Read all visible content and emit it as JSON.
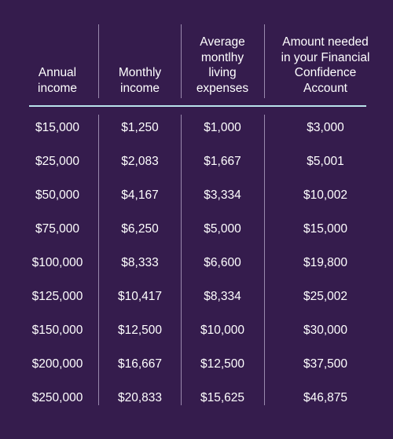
{
  "table": {
    "headers": [
      "Annual\nincome",
      "Monthly\nincome",
      "Average\nmontlhy\nliving\nexpenses",
      "Amount needed\nin your Financial\nConfidence\nAccount"
    ],
    "rows": [
      [
        "$15,000",
        "$1,250",
        "$1,000",
        "$3,000"
      ],
      [
        "$25,000",
        "$2,083",
        "$1,667",
        "$5,001"
      ],
      [
        "$50,000",
        "$4,167",
        "$3,334",
        "$10,002"
      ],
      [
        "$75,000",
        "$6,250",
        "$5,000",
        "$15,000"
      ],
      [
        "$100,000",
        "$8,333",
        "$6,600",
        "$19,800"
      ],
      [
        "$125,000",
        "$10,417",
        "$8,334",
        "$25,002"
      ],
      [
        "$150,000",
        "$12,500",
        "$10,000",
        "$30,000"
      ],
      [
        "$200,000",
        "$16,667",
        "$12,500",
        "$37,500"
      ],
      [
        "$250,000",
        "$20,833",
        "$15,625",
        "$46,875"
      ]
    ]
  },
  "colors": {
    "background": "#351c4d",
    "text": "#ffffff",
    "header_rule": "#b9e3ec",
    "column_divider": "#9a8aae"
  }
}
